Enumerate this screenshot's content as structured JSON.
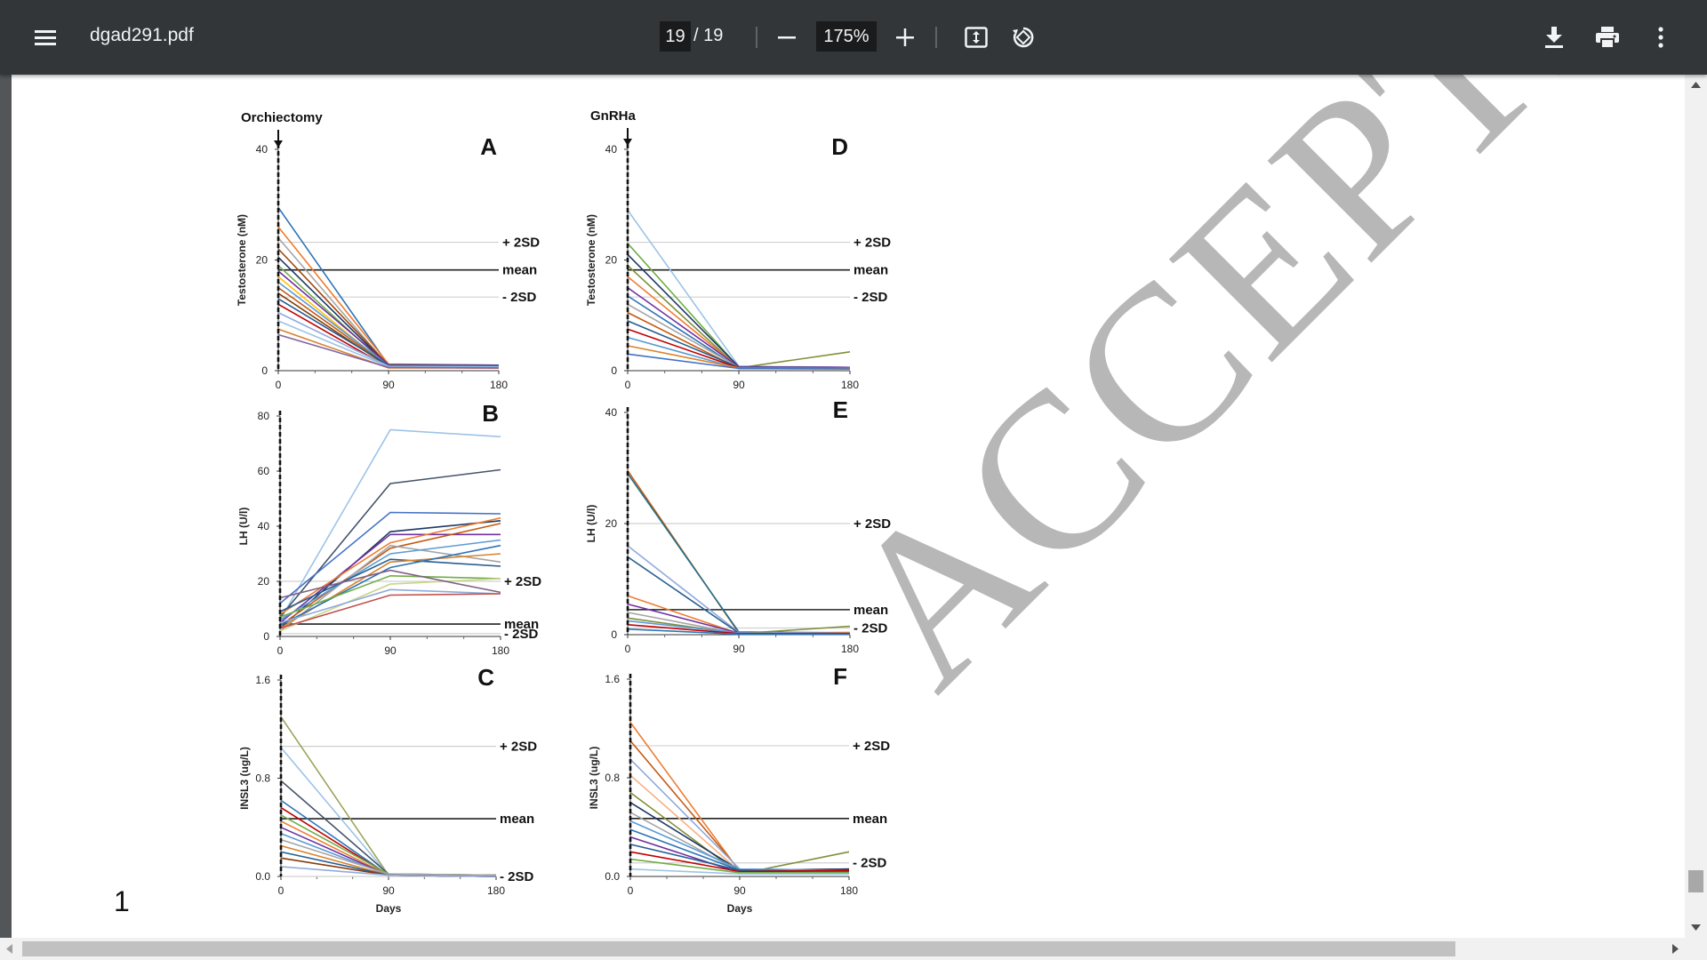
{
  "toolbar": {
    "menu_icon": "hamburger-menu-icon",
    "title": "dgad291.pdf",
    "current_page": "19",
    "page_total": "/ 19",
    "zoom_out_icon": "minus-icon",
    "zoom": "175%",
    "zoom_in_icon": "plus-icon",
    "fit_icon": "fit-to-page-icon",
    "rotate_icon": "rotate-icon",
    "download_icon": "download-icon",
    "print_icon": "print-icon",
    "more_icon": "more-vertical-icon"
  },
  "document": {
    "page_number": "1",
    "watermark": "ACCEPTED MANUSCRIPT"
  },
  "figure": {
    "groups": {
      "left": "Orchiectomy",
      "right": "GnRHa"
    },
    "x_label": "Days"
  },
  "chart_data": [
    {
      "panel": "A",
      "type": "line",
      "ylabel": "Testosterone (nM)",
      "x": [
        0,
        90,
        180
      ],
      "xticks": [
        "0",
        "90",
        "180"
      ],
      "ylim": [
        0,
        40
      ],
      "yticks": [
        "0",
        "20",
        "40"
      ],
      "reference_lines": [
        {
          "label": "+ 2SD",
          "y": 23.2
        },
        {
          "label": "mean",
          "y": 18.2
        },
        {
          "label": "- 2SD",
          "y": 13.3
        }
      ],
      "series": [
        {
          "values": [
            29.5,
            1.0,
            0.8
          ],
          "color": "#2e75b6"
        },
        {
          "values": [
            26,
            1.2,
            1.0
          ],
          "color": "#ed7d31"
        },
        {
          "values": [
            24,
            0.8,
            0.7
          ],
          "color": "#a5a5a5"
        },
        {
          "values": [
            22,
            1.0,
            0.9
          ],
          "color": "#9e480e"
        },
        {
          "values": [
            20.5,
            0.9,
            0.8
          ],
          "color": "#1f3864"
        },
        {
          "values": [
            19,
            0.7,
            0.6
          ],
          "color": "#70ad47"
        },
        {
          "values": [
            18,
            1.1,
            1.0
          ],
          "color": "#7030a0"
        },
        {
          "values": [
            17,
            0.6,
            0.5
          ],
          "color": "#ffc000"
        },
        {
          "values": [
            16,
            0.9,
            0.8
          ],
          "color": "#5b9bd5"
        },
        {
          "values": [
            15,
            0.8,
            0.7
          ],
          "color": "#c55a11"
        },
        {
          "values": [
            14,
            0.7,
            0.6
          ],
          "color": "#843c0c"
        },
        {
          "values": [
            13,
            1.0,
            0.9
          ],
          "color": "#255e91"
        },
        {
          "values": [
            12,
            0.6,
            0.5
          ],
          "color": "#c00000"
        },
        {
          "values": [
            10.5,
            0.8,
            0.7
          ],
          "color": "#8faadc"
        },
        {
          "values": [
            9,
            0.7,
            0.6
          ],
          "color": "#9dc3e6"
        },
        {
          "values": [
            7.5,
            0.5,
            0.5
          ],
          "color": "#d9822b"
        },
        {
          "values": [
            6.5,
            0.6,
            0.5
          ],
          "color": "#8064a2"
        }
      ]
    },
    {
      "panel": "D",
      "type": "line",
      "ylabel": "Testosterone (nM)",
      "x": [
        0,
        90,
        180
      ],
      "xticks": [
        "0",
        "90",
        "180"
      ],
      "ylim": [
        0,
        40
      ],
      "yticks": [
        "0",
        "20",
        "40"
      ],
      "reference_lines": [
        {
          "label": "+ 2SD",
          "y": 23.2
        },
        {
          "label": "mean",
          "y": 18.2
        },
        {
          "label": "- 2SD",
          "y": 13.3
        }
      ],
      "series": [
        {
          "values": [
            29,
            0.8,
            0.6
          ],
          "color": "#9dc3e6"
        },
        {
          "values": [
            23,
            0.6,
            0.5
          ],
          "color": "#70ad47"
        },
        {
          "values": [
            21,
            0.7,
            0.6
          ],
          "color": "#1f3864"
        },
        {
          "values": [
            19,
            0.5,
            3.4
          ],
          "color": "#7f8f3a"
        },
        {
          "values": [
            17,
            0.6,
            0.5
          ],
          "color": "#ed7d31"
        },
        {
          "values": [
            15,
            0.7,
            0.6
          ],
          "color": "#7030a0"
        },
        {
          "values": [
            13.5,
            0.5,
            0.4
          ],
          "color": "#2e75b6"
        },
        {
          "values": [
            12,
            0.6,
            0.5
          ],
          "color": "#a5a5a5"
        },
        {
          "values": [
            10.5,
            0.4,
            0.4
          ],
          "color": "#c55a11"
        },
        {
          "values": [
            9,
            0.6,
            0.5
          ],
          "color": "#255e91"
        },
        {
          "values": [
            7.5,
            0.5,
            0.4
          ],
          "color": "#c00000"
        },
        {
          "values": [
            6,
            0.4,
            0.4
          ],
          "color": "#5b9bd5"
        },
        {
          "values": [
            4.5,
            0.5,
            0.4
          ],
          "color": "#d9822b"
        },
        {
          "values": [
            3,
            0.4,
            0.3
          ],
          "color": "#4472c4"
        }
      ]
    },
    {
      "panel": "B",
      "type": "line",
      "ylabel": "LH (U/l)",
      "x": [
        0,
        90,
        180
      ],
      "xticks": [
        "0",
        "90",
        "180"
      ],
      "ylim": [
        0,
        80
      ],
      "yticks": [
        "0",
        "20",
        "40",
        "60",
        "80"
      ],
      "reference_lines": [
        {
          "label": "+ 2SD",
          "y": 20
        },
        {
          "label": "mean",
          "y": 4.5
        },
        {
          "label": "- 2SD",
          "y": 1.0
        }
      ],
      "series": [
        {
          "values": [
            6,
            75,
            72.5
          ],
          "color": "#9dc3e6"
        },
        {
          "values": [
            7,
            55.5,
            60.5
          ],
          "color": "#44546a"
        },
        {
          "values": [
            12,
            45,
            44.5
          ],
          "color": "#4472c4"
        },
        {
          "values": [
            3,
            38,
            42
          ],
          "color": "#1f3864"
        },
        {
          "values": [
            5,
            37,
            37
          ],
          "color": "#7030a0"
        },
        {
          "values": [
            8,
            34,
            43
          ],
          "color": "#ed7d31"
        },
        {
          "values": [
            4,
            32,
            41
          ],
          "color": "#c55a11"
        },
        {
          "values": [
            2,
            33,
            27
          ],
          "color": "#a5a5a5"
        },
        {
          "values": [
            6,
            30,
            35
          ],
          "color": "#5b9bd5"
        },
        {
          "values": [
            9,
            28,
            25.5
          ],
          "color": "#255e91"
        },
        {
          "values": [
            3,
            27,
            30
          ],
          "color": "#d9822b"
        },
        {
          "values": [
            4,
            25,
            33
          ],
          "color": "#2e75b6"
        },
        {
          "values": [
            7,
            22,
            21
          ],
          "color": "#70ad47"
        },
        {
          "values": [
            2,
            19,
            21
          ],
          "color": "#c9d58a"
        },
        {
          "values": [
            5,
            17,
            15.5
          ],
          "color": "#8faadc"
        },
        {
          "values": [
            3,
            15,
            15.5
          ],
          "color": "#c0504d"
        },
        {
          "values": [
            14,
            24,
            16
          ],
          "color": "#7f6084"
        }
      ]
    },
    {
      "panel": "E",
      "type": "line",
      "ylabel": "LH (U/l)",
      "x": [
        0,
        90,
        180
      ],
      "xticks": [
        "0",
        "90",
        "180"
      ],
      "ylim": [
        0,
        40
      ],
      "yticks": [
        "0",
        "20",
        "40"
      ],
      "reference_lines": [
        {
          "label": "+ 2SD",
          "y": 20
        },
        {
          "label": "mean",
          "y": 4.5
        },
        {
          "label": "- 2SD",
          "y": 1.2
        }
      ],
      "series": [
        {
          "values": [
            29.5,
            0.3,
            0.4
          ],
          "color": "#c55a11"
        },
        {
          "values": [
            29,
            0.5,
            0.3
          ],
          "color": "#1f6f8b"
        },
        {
          "values": [
            16,
            0.4,
            0.3
          ],
          "color": "#8faadc"
        },
        {
          "values": [
            14,
            0.3,
            0.2
          ],
          "color": "#255e91"
        },
        {
          "values": [
            7,
            0.2,
            0.3
          ],
          "color": "#ed7d31"
        },
        {
          "values": [
            5.5,
            0.3,
            0.2
          ],
          "color": "#7030a0"
        },
        {
          "values": [
            4,
            0.2,
            0.2
          ],
          "color": "#a5a5a5"
        },
        {
          "values": [
            3,
            0.2,
            1.5
          ],
          "color": "#7f8f3a"
        },
        {
          "values": [
            2.5,
            0.3,
            0.2
          ],
          "color": "#5b9bd5"
        },
        {
          "values": [
            1.8,
            0.2,
            0.2
          ],
          "color": "#c00000"
        },
        {
          "values": [
            1,
            0.1,
            0.1
          ],
          "color": "#2e75b6"
        }
      ]
    },
    {
      "panel": "C",
      "type": "line",
      "ylabel": "INSL3 (ug/L)",
      "xlabel": "Days",
      "x": [
        0,
        90,
        180
      ],
      "xticks": [
        "0",
        "90",
        "180"
      ],
      "ylim": [
        0,
        1.6
      ],
      "yticks": [
        "0.0",
        "0.8",
        "1.6"
      ],
      "reference_lines": [
        {
          "label": "+ 2SD",
          "y": 1.06
        },
        {
          "label": "mean",
          "y": 0.47
        },
        {
          "label": "- 2SD",
          "y": 0.0
        }
      ],
      "series": [
        {
          "values": [
            1.3,
            0.01,
            0.0
          ],
          "color": "#9aa55b"
        },
        {
          "values": [
            1.05,
            0.01,
            0.0
          ],
          "color": "#9dc3e6"
        },
        {
          "values": [
            0.78,
            0.02,
            0.01
          ],
          "color": "#44546a"
        },
        {
          "values": [
            0.62,
            0.01,
            0.01
          ],
          "color": "#2e75b6"
        },
        {
          "values": [
            0.56,
            0.01,
            0.0
          ],
          "color": "#c00000"
        },
        {
          "values": [
            0.5,
            0.02,
            0.01
          ],
          "color": "#70ad47"
        },
        {
          "values": [
            0.45,
            0.01,
            0.0
          ],
          "color": "#ed7d31"
        },
        {
          "values": [
            0.4,
            0.01,
            0.01
          ],
          "color": "#7030a0"
        },
        {
          "values": [
            0.35,
            0.01,
            0.0
          ],
          "color": "#5b9bd5"
        },
        {
          "values": [
            0.3,
            0.02,
            0.01
          ],
          "color": "#a5a5a5"
        },
        {
          "values": [
            0.25,
            0.01,
            0.0
          ],
          "color": "#d9822b"
        },
        {
          "values": [
            0.2,
            0.01,
            0.0
          ],
          "color": "#255e91"
        },
        {
          "values": [
            0.15,
            0.01,
            0.0
          ],
          "color": "#843c0c"
        },
        {
          "values": [
            0.08,
            0.01,
            0.0
          ],
          "color": "#8faadc"
        }
      ]
    },
    {
      "panel": "F",
      "type": "line",
      "ylabel": "INSL3 (ug/L)",
      "xlabel": "Days",
      "x": [
        0,
        90,
        180
      ],
      "xticks": [
        "0",
        "90",
        "180"
      ],
      "ylim": [
        0,
        1.6
      ],
      "yticks": [
        "0.0",
        "0.8",
        "1.6"
      ],
      "reference_lines": [
        {
          "label": "+ 2SD",
          "y": 1.06
        },
        {
          "label": "mean",
          "y": 0.47
        },
        {
          "label": "- 2SD",
          "y": 0.11
        }
      ],
      "series": [
        {
          "values": [
            1.25,
            0.04,
            0.05
          ],
          "color": "#ed7d31"
        },
        {
          "values": [
            1.1,
            0.05,
            0.06
          ],
          "color": "#c55a11"
        },
        {
          "values": [
            0.95,
            0.06,
            0.05
          ],
          "color": "#8faadc"
        },
        {
          "values": [
            0.82,
            0.04,
            0.04
          ],
          "color": "#f4b183"
        },
        {
          "values": [
            0.68,
            0.02,
            0.2
          ],
          "color": "#7f8f3a"
        },
        {
          "values": [
            0.6,
            0.05,
            0.06
          ],
          "color": "#1f3864"
        },
        {
          "values": [
            0.52,
            0.04,
            0.05
          ],
          "color": "#a5a5a5"
        },
        {
          "values": [
            0.45,
            0.06,
            0.05
          ],
          "color": "#5b9bd5"
        },
        {
          "values": [
            0.38,
            0.05,
            0.04
          ],
          "color": "#2e75b6"
        },
        {
          "values": [
            0.32,
            0.03,
            0.05
          ],
          "color": "#7030a0"
        },
        {
          "values": [
            0.26,
            0.05,
            0.04
          ],
          "color": "#255e91"
        },
        {
          "values": [
            0.2,
            0.04,
            0.05
          ],
          "color": "#c00000"
        },
        {
          "values": [
            0.14,
            0.03,
            0.03
          ],
          "color": "#70ad47"
        },
        {
          "values": [
            0.06,
            0.02,
            0.02
          ],
          "color": "#9dc3e6"
        }
      ]
    }
  ]
}
